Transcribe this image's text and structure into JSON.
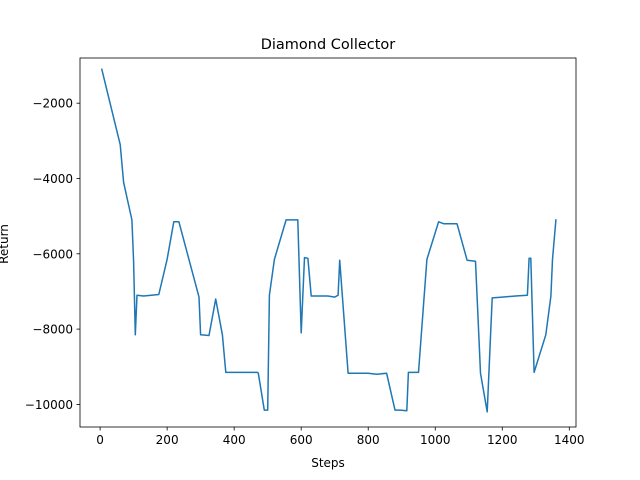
{
  "chart_data": {
    "type": "line",
    "title": "Diamond Collector",
    "xlabel": "Steps",
    "ylabel": "Return",
    "xlim": [
      -60,
      1420
    ],
    "ylim": [
      -10600,
      -800
    ],
    "xticks": [
      0,
      200,
      400,
      600,
      800,
      1000,
      1200,
      1400
    ],
    "yticks": [
      -10000,
      -8000,
      -6000,
      -4000,
      -2000
    ],
    "xtick_labels": [
      "0",
      "200",
      "400",
      "600",
      "800",
      "1000",
      "1200",
      "1400"
    ],
    "ytick_labels": [
      "−10000",
      "−8000",
      "−6000",
      "−4000",
      "−2000"
    ],
    "grid": false,
    "series": [
      {
        "color": "#1f77b4",
        "x": [
          5,
          60,
          70,
          95,
          100,
          105,
          110,
          130,
          175,
          200,
          220,
          235,
          295,
          300,
          325,
          345,
          365,
          375,
          470,
          472,
          490,
          500,
          505,
          520,
          555,
          590,
          600,
          610,
          620,
          630,
          680,
          700,
          710,
          715,
          740,
          800,
          825,
          855,
          880,
          895,
          915,
          920,
          950,
          975,
          1010,
          1025,
          1065,
          1095,
          1120,
          1135,
          1155,
          1170,
          1200,
          1240,
          1275,
          1280,
          1285,
          1295,
          1330,
          1345,
          1350,
          1360
        ],
        "y": [
          -1100,
          -3100,
          -4100,
          -5100,
          -6200,
          -8150,
          -7100,
          -7120,
          -7080,
          -6150,
          -5150,
          -5150,
          -7150,
          -8150,
          -8170,
          -7200,
          -8150,
          -9150,
          -9150,
          -9170,
          -10150,
          -10150,
          -7100,
          -6150,
          -5100,
          -5100,
          -8100,
          -6100,
          -6120,
          -7120,
          -7120,
          -7150,
          -7100,
          -6170,
          -9170,
          -9170,
          -9200,
          -9170,
          -10150,
          -10150,
          -10170,
          -9150,
          -9150,
          -6150,
          -5150,
          -5200,
          -5200,
          -6170,
          -6200,
          -9170,
          -10200,
          -7170,
          -7150,
          -7120,
          -7100,
          -6120,
          -6120,
          -9150,
          -8150,
          -7120,
          -6150,
          -5100
        ]
      }
    ]
  }
}
